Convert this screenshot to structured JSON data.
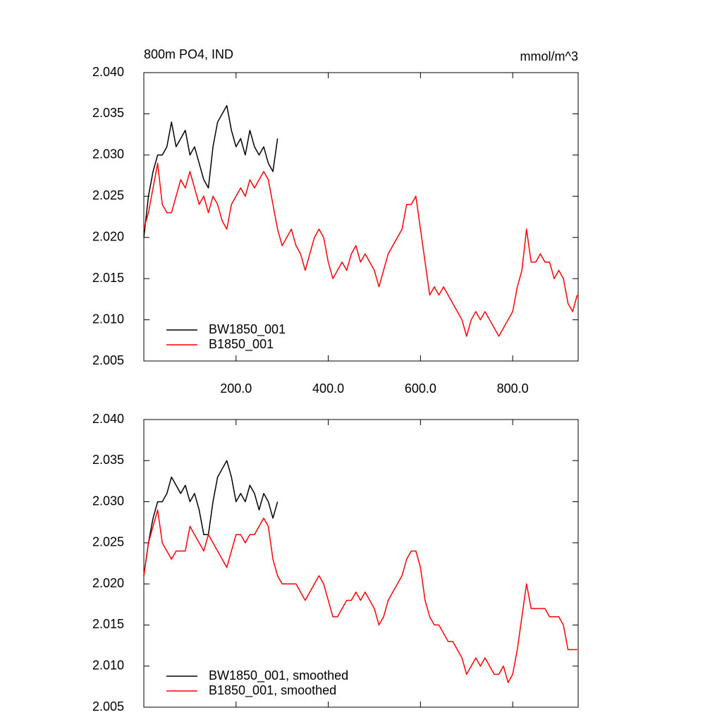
{
  "chart_data": [
    {
      "type": "line",
      "title": "800m PO4, IND",
      "units": "mmol/m^3",
      "x": [
        0,
        10,
        20,
        30,
        40,
        50,
        60,
        70,
        80,
        90,
        100,
        110,
        120,
        130,
        140,
        150,
        160,
        170,
        180,
        190,
        200,
        210,
        220,
        230,
        240,
        250,
        260,
        270,
        280,
        290,
        300,
        310,
        320,
        330,
        340,
        350,
        360,
        370,
        380,
        390,
        400,
        410,
        420,
        430,
        440,
        450,
        460,
        470,
        480,
        490,
        500,
        510,
        520,
        530,
        540,
        550,
        560,
        570,
        580,
        590,
        600,
        610,
        620,
        630,
        640,
        650,
        660,
        670,
        680,
        690,
        700,
        710,
        720,
        730,
        740,
        750,
        760,
        770,
        780,
        790,
        800,
        810,
        820,
        830,
        840,
        850,
        860,
        870,
        880,
        890,
        900,
        910,
        920,
        930,
        940
      ],
      "series": [
        {
          "name": "BW1850_001",
          "color": "#000000",
          "values": [
            2.02,
            2.025,
            2.028,
            2.03,
            2.03,
            2.031,
            2.034,
            2.031,
            2.032,
            2.033,
            2.03,
            2.031,
            2.029,
            2.027,
            2.026,
            2.031,
            2.034,
            2.035,
            2.036,
            2.033,
            2.031,
            2.032,
            2.03,
            2.033,
            2.031,
            2.03,
            2.031,
            2.029,
            2.028,
            2.032,
            null,
            null,
            null,
            null,
            null,
            null,
            null,
            null,
            null,
            null,
            null,
            null,
            null,
            null,
            null,
            null,
            null,
            null,
            null,
            null,
            null,
            null,
            null,
            null,
            null,
            null,
            null,
            null,
            null,
            null,
            null,
            null,
            null,
            null,
            null,
            null,
            null,
            null,
            null,
            null,
            null,
            null,
            null,
            null,
            null,
            null,
            null,
            null,
            null,
            null,
            null,
            null,
            null,
            null,
            null,
            null,
            null,
            null,
            null,
            null,
            null,
            null,
            null,
            null,
            null
          ]
        },
        {
          "name": "B1850_001",
          "color": "#ff0000",
          "values": [
            2.021,
            2.023,
            2.026,
            2.029,
            2.024,
            2.023,
            2.023,
            2.025,
            2.027,
            2.026,
            2.028,
            2.026,
            2.024,
            2.025,
            2.023,
            2.025,
            2.024,
            2.022,
            2.021,
            2.024,
            2.025,
            2.026,
            2.025,
            2.027,
            2.026,
            2.027,
            2.028,
            2.027,
            2.024,
            2.021,
            2.019,
            2.02,
            2.021,
            2.019,
            2.018,
            2.016,
            2.018,
            2.02,
            2.021,
            2.02,
            2.017,
            2.015,
            2.016,
            2.017,
            2.016,
            2.018,
            2.019,
            2.017,
            2.018,
            2.017,
            2.016,
            2.014,
            2.016,
            2.018,
            2.019,
            2.02,
            2.021,
            2.024,
            2.024,
            2.025,
            2.021,
            2.017,
            2.013,
            2.014,
            2.013,
            2.014,
            2.013,
            2.012,
            2.011,
            2.01,
            2.008,
            2.01,
            2.011,
            2.01,
            2.011,
            2.01,
            2.009,
            2.008,
            2.009,
            2.01,
            2.011,
            2.014,
            2.016,
            2.021,
            2.017,
            2.017,
            2.018,
            2.017,
            2.017,
            2.015,
            2.016,
            2.015,
            2.012,
            2.011,
            2.013
          ]
        }
      ],
      "xlim": [
        0,
        942
      ],
      "xticks": [
        {
          "value": 200,
          "label": "200.0"
        },
        {
          "value": 400,
          "label": "400.0"
        },
        {
          "value": 600,
          "label": "600.0"
        },
        {
          "value": 800,
          "label": "800.0"
        }
      ],
      "ylim": [
        2.005,
        2.04
      ],
      "yticks": [
        {
          "value": 2.005,
          "label": "2.005"
        },
        {
          "value": 2.01,
          "label": "2.010"
        },
        {
          "value": 2.015,
          "label": "2.015"
        },
        {
          "value": 2.02,
          "label": "2.020"
        },
        {
          "value": 2.025,
          "label": "2.025"
        },
        {
          "value": 2.03,
          "label": "2.030"
        },
        {
          "value": 2.035,
          "label": "2.035"
        },
        {
          "value": 2.04,
          "label": "2.040"
        }
      ],
      "legend": "lower left"
    },
    {
      "type": "line",
      "x": [
        0,
        10,
        20,
        30,
        40,
        50,
        60,
        70,
        80,
        90,
        100,
        110,
        120,
        130,
        140,
        150,
        160,
        170,
        180,
        190,
        200,
        210,
        220,
        230,
        240,
        250,
        260,
        270,
        280,
        290,
        300,
        310,
        320,
        330,
        340,
        350,
        360,
        370,
        380,
        390,
        400,
        410,
        420,
        430,
        440,
        450,
        460,
        470,
        480,
        490,
        500,
        510,
        520,
        530,
        540,
        550,
        560,
        570,
        580,
        590,
        600,
        610,
        620,
        630,
        640,
        650,
        660,
        670,
        680,
        690,
        700,
        710,
        720,
        730,
        740,
        750,
        760,
        770,
        780,
        790,
        800,
        810,
        820,
        830,
        840,
        850,
        860,
        870,
        880,
        890,
        900,
        910,
        920,
        930,
        940
      ],
      "series": [
        {
          "name": "BW1850_001, smoothed",
          "color": "#000000",
          "values": [
            2.021,
            2.025,
            2.028,
            2.03,
            2.03,
            2.031,
            2.033,
            2.032,
            2.031,
            2.032,
            2.03,
            2.031,
            2.029,
            2.026,
            2.026,
            2.03,
            2.033,
            2.034,
            2.035,
            2.033,
            2.03,
            2.031,
            2.03,
            2.032,
            2.031,
            2.029,
            2.031,
            2.03,
            2.028,
            2.03,
            null,
            null,
            null,
            null,
            null,
            null,
            null,
            null,
            null,
            null,
            null,
            null,
            null,
            null,
            null,
            null,
            null,
            null,
            null,
            null,
            null,
            null,
            null,
            null,
            null,
            null,
            null,
            null,
            null,
            null,
            null,
            null,
            null,
            null,
            null,
            null,
            null,
            null,
            null,
            null,
            null,
            null,
            null,
            null,
            null,
            null,
            null,
            null,
            null,
            null,
            null,
            null,
            null,
            null,
            null,
            null,
            null,
            null,
            null,
            null,
            null,
            null,
            null,
            null,
            null
          ]
        },
        {
          "name": "B1850_001, smoothed",
          "color": "#ff0000",
          "values": [
            2.021,
            2.025,
            2.027,
            2.029,
            2.025,
            2.024,
            2.023,
            2.024,
            2.024,
            2.024,
            2.027,
            2.026,
            2.025,
            2.024,
            2.026,
            2.025,
            2.024,
            2.023,
            2.022,
            2.024,
            2.026,
            2.026,
            2.025,
            2.026,
            2.026,
            2.027,
            2.028,
            2.027,
            2.023,
            2.021,
            2.02,
            2.02,
            2.02,
            2.02,
            2.019,
            2.018,
            2.019,
            2.02,
            2.021,
            2.02,
            2.018,
            2.016,
            2.016,
            2.017,
            2.018,
            2.018,
            2.019,
            2.018,
            2.019,
            2.018,
            2.017,
            2.015,
            2.016,
            2.018,
            2.019,
            2.02,
            2.021,
            2.023,
            2.024,
            2.024,
            2.022,
            2.018,
            2.016,
            2.015,
            2.015,
            2.014,
            2.013,
            2.013,
            2.012,
            2.011,
            2.009,
            2.01,
            2.011,
            2.01,
            2.011,
            2.01,
            2.009,
            2.009,
            2.01,
            2.008,
            2.009,
            2.012,
            2.016,
            2.02,
            2.017,
            2.017,
            2.017,
            2.017,
            2.016,
            2.016,
            2.016,
            2.015,
            2.012,
            2.012,
            2.012
          ]
        }
      ],
      "xlim": [
        0,
        942
      ],
      "xticks": [
        200,
        400,
        600,
        800
      ],
      "ylim": [
        2.005,
        2.04
      ],
      "yticks": [
        {
          "value": 2.005,
          "label": "2.005"
        },
        {
          "value": 2.01,
          "label": "2.010"
        },
        {
          "value": 2.015,
          "label": "2.015"
        },
        {
          "value": 2.02,
          "label": "2.020"
        },
        {
          "value": 2.025,
          "label": "2.025"
        },
        {
          "value": 2.03,
          "label": "2.030"
        },
        {
          "value": 2.035,
          "label": "2.035"
        },
        {
          "value": 2.04,
          "label": "2.040"
        }
      ],
      "legend": "lower left"
    }
  ]
}
